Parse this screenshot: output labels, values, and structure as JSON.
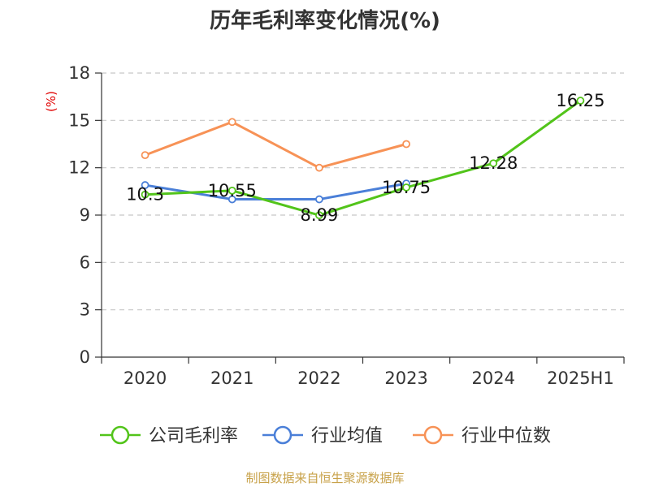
{
  "chart_data": {
    "type": "line",
    "title": "历年毛利率变化情况(%)",
    "ylabel": "(%)",
    "xlabel": "",
    "categories": [
      "2020",
      "2021",
      "2022",
      "2023",
      "2024",
      "2025H1"
    ],
    "ylim": [
      0,
      18
    ],
    "yticks": [
      0,
      3,
      6,
      9,
      12,
      15,
      18
    ],
    "grid": true,
    "legend_position": "bottom",
    "series": [
      {
        "name": "公司毛利率",
        "color": "#52c41a",
        "values": [
          10.3,
          10.55,
          8.99,
          10.75,
          12.28,
          16.25
        ],
        "labels": [
          "10.3",
          "10.55",
          "8.99",
          "10.75",
          "12.28",
          "16.25"
        ]
      },
      {
        "name": "行业均值",
        "color": "#4a7fd8",
        "values": [
          10.9,
          10.0,
          10.0,
          11.0,
          null,
          null
        ],
        "labels": []
      },
      {
        "name": "行业中位数",
        "color": "#f79256",
        "values": [
          12.8,
          14.9,
          12.0,
          13.5,
          null,
          null
        ],
        "labels": []
      }
    ]
  },
  "source": "制图数据来自恒生聚源数据库"
}
